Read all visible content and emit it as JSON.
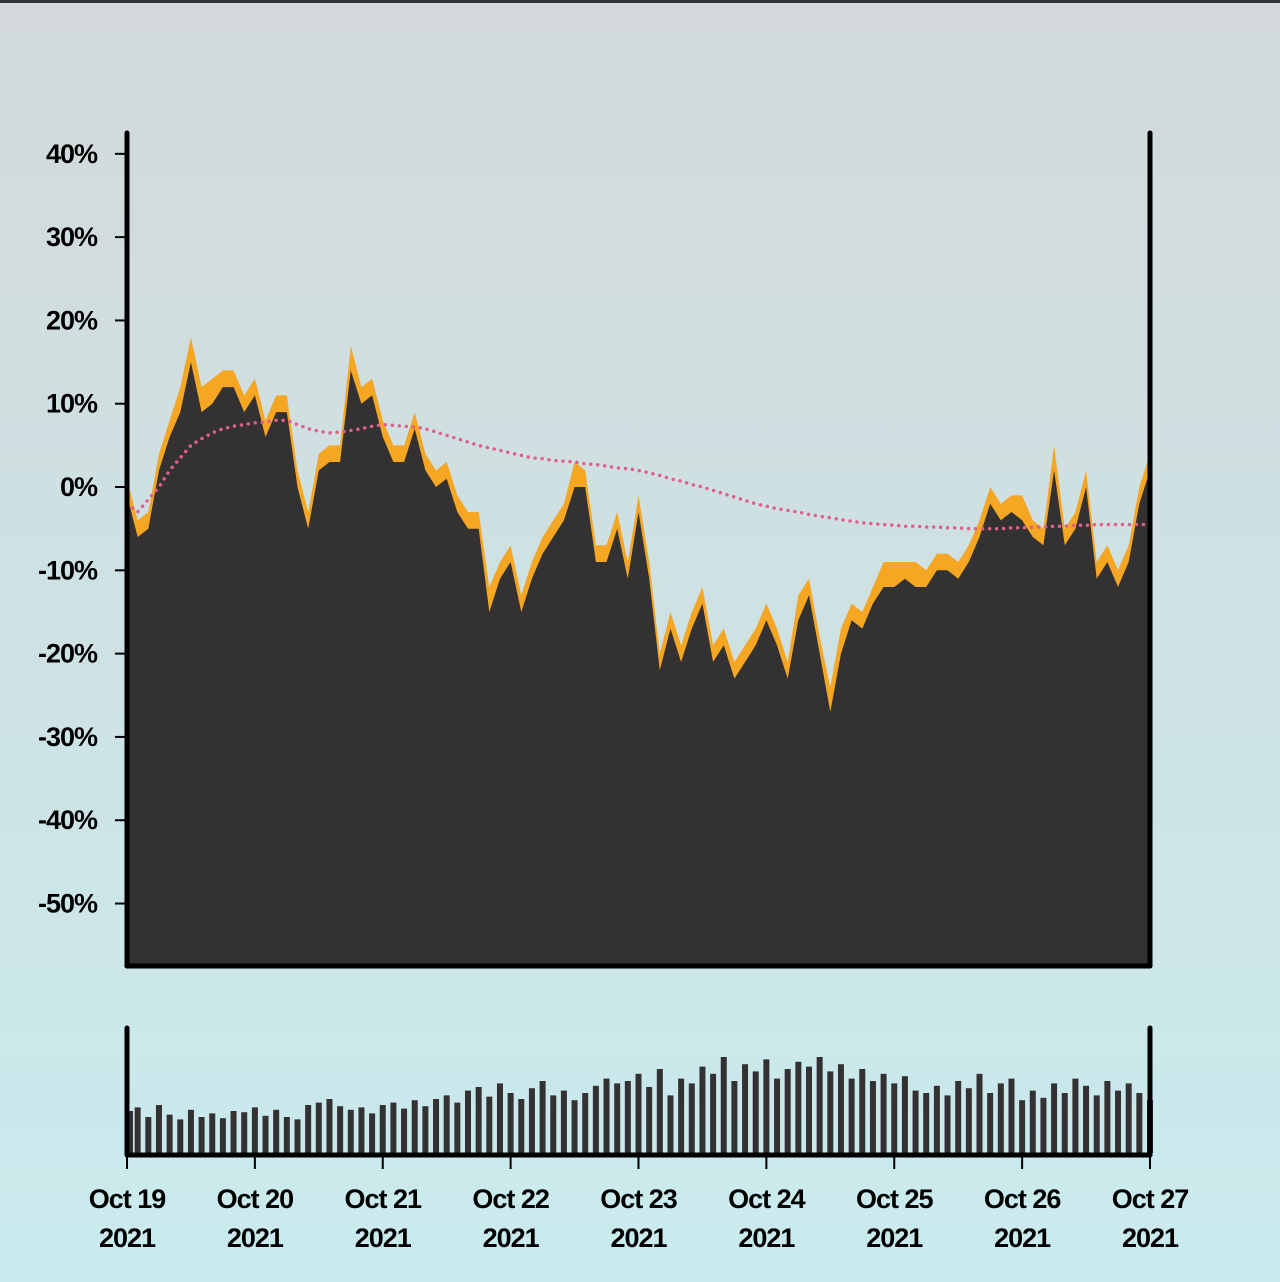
{
  "chart_data": [
    {
      "type": "area",
      "x": [
        "2021-10-19T00:00",
        "2021-10-19T02:00",
        "2021-10-19T04:00",
        "2021-10-19T06:00",
        "2021-10-19T08:00",
        "2021-10-19T10:00",
        "2021-10-19T12:00",
        "2021-10-19T14:00",
        "2021-10-19T16:00",
        "2021-10-19T18:00",
        "2021-10-19T20:00",
        "2021-10-19T22:00",
        "2021-10-20T00:00",
        "2021-10-20T02:00",
        "2021-10-20T04:00",
        "2021-10-20T06:00",
        "2021-10-20T08:00",
        "2021-10-20T10:00",
        "2021-10-20T12:00",
        "2021-10-20T14:00",
        "2021-10-20T16:00",
        "2021-10-20T18:00",
        "2021-10-20T20:00",
        "2021-10-20T22:00",
        "2021-10-21T00:00",
        "2021-10-21T02:00",
        "2021-10-21T04:00",
        "2021-10-21T06:00",
        "2021-10-21T08:00",
        "2021-10-21T10:00",
        "2021-10-21T12:00",
        "2021-10-21T14:00",
        "2021-10-21T16:00",
        "2021-10-21T18:00",
        "2021-10-21T20:00",
        "2021-10-21T22:00",
        "2021-10-22T00:00",
        "2021-10-22T02:00",
        "2021-10-22T04:00",
        "2021-10-22T06:00",
        "2021-10-22T08:00",
        "2021-10-22T10:00",
        "2021-10-22T12:00",
        "2021-10-22T14:00",
        "2021-10-22T16:00",
        "2021-10-22T18:00",
        "2021-10-22T20:00",
        "2021-10-22T22:00",
        "2021-10-23T00:00",
        "2021-10-23T02:00",
        "2021-10-23T04:00",
        "2021-10-23T06:00",
        "2021-10-23T08:00",
        "2021-10-23T10:00",
        "2021-10-23T12:00",
        "2021-10-23T14:00",
        "2021-10-23T16:00",
        "2021-10-23T18:00",
        "2021-10-23T20:00",
        "2021-10-23T22:00",
        "2021-10-24T00:00",
        "2021-10-24T02:00",
        "2021-10-24T04:00",
        "2021-10-24T06:00",
        "2021-10-24T08:00",
        "2021-10-24T10:00",
        "2021-10-24T12:00",
        "2021-10-24T14:00",
        "2021-10-24T16:00",
        "2021-10-24T18:00",
        "2021-10-24T20:00",
        "2021-10-24T22:00",
        "2021-10-25T00:00",
        "2021-10-25T02:00",
        "2021-10-25T04:00",
        "2021-10-25T06:00",
        "2021-10-25T08:00",
        "2021-10-25T10:00",
        "2021-10-25T12:00",
        "2021-10-25T14:00",
        "2021-10-25T16:00",
        "2021-10-25T18:00",
        "2021-10-25T20:00",
        "2021-10-25T22:00",
        "2021-10-26T00:00",
        "2021-10-26T02:00",
        "2021-10-26T04:00",
        "2021-10-26T06:00",
        "2021-10-26T08:00",
        "2021-10-26T10:00",
        "2021-10-26T12:00",
        "2021-10-26T14:00",
        "2021-10-26T16:00",
        "2021-10-26T18:00",
        "2021-10-26T20:00",
        "2021-10-26T22:00",
        "2021-10-27T00:00"
      ],
      "series": [
        {
          "color": "#f5a623",
          "values": [
            1,
            -4,
            -3,
            4,
            8,
            12,
            18,
            12,
            13,
            14,
            14,
            11,
            13,
            8,
            11,
            11,
            2,
            -3,
            4,
            5,
            5,
            17,
            12,
            13,
            8,
            5,
            5,
            9,
            4,
            2,
            3,
            -1,
            -3,
            -3,
            -12,
            -9,
            -7,
            -13,
            -9,
            -6,
            -4,
            -2,
            3,
            2,
            -7,
            -7,
            -3,
            -9,
            -1,
            -9,
            -20,
            -15,
            -19,
            -15,
            -12,
            -19,
            -17,
            -21,
            -19,
            -17,
            -14,
            -17,
            -21,
            -13,
            -11,
            -18,
            -24,
            -17,
            -14,
            -15,
            -12,
            -9,
            -9,
            -9,
            -9,
            -10,
            -8,
            -8,
            -9,
            -7,
            -4,
            0,
            -2,
            -1,
            -1,
            -4,
            -5,
            5,
            -5,
            -3,
            2,
            -9,
            -7,
            -10,
            -7,
            0,
            4
          ]
        },
        {
          "color": "#343132",
          "values": [
            -1,
            -6,
            -5,
            2,
            6,
            9,
            15,
            9,
            10,
            12,
            12,
            9,
            11,
            6,
            9,
            9,
            0,
            -5,
            2,
            3,
            3,
            14,
            10,
            11,
            6,
            3,
            3,
            7,
            2,
            0,
            1,
            -3,
            -5,
            -5,
            -15,
            -11,
            -9,
            -15,
            -11,
            -8,
            -6,
            -4,
            0,
            0,
            -9,
            -9,
            -5,
            -11,
            -3,
            -11,
            -22,
            -17,
            -21,
            -17,
            -14,
            -21,
            -19,
            -23,
            -21,
            -19,
            -16,
            -19,
            -23,
            -16,
            -13,
            -20,
            -27,
            -20,
            -16,
            -17,
            -14,
            -12,
            -12,
            -11,
            -12,
            -12,
            -10,
            -10,
            -11,
            -9,
            -6,
            -2,
            -4,
            -3,
            -4,
            -6,
            -7,
            2,
            -7,
            -5,
            0,
            -11,
            -9,
            -12,
            -9,
            -2,
            2
          ]
        },
        {
          "color": "#e0608a",
          "style": "dotted",
          "values": [
            -2,
            -3,
            -1.5,
            0,
            2,
            3.5,
            5,
            5.8,
            6.5,
            7,
            7.3,
            7.5,
            7.7,
            7.8,
            8,
            8,
            7.5,
            7,
            6.7,
            6.5,
            6.6,
            6.8,
            7,
            7.3,
            7.5,
            7.4,
            7.3,
            7.2,
            7,
            6.6,
            6.2,
            5.8,
            5.4,
            5,
            4.7,
            4.4,
            4.1,
            3.8,
            3.5,
            3.4,
            3.2,
            3.1,
            3,
            2.8,
            2.7,
            2.5,
            2.3,
            2.2,
            2,
            1.7,
            1.4,
            1,
            0.7,
            0.3,
            0,
            -0.4,
            -0.8,
            -1.2,
            -1.6,
            -2,
            -2.3,
            -2.6,
            -2.8,
            -3,
            -3.3,
            -3.5,
            -3.7,
            -3.9,
            -4.1,
            -4.3,
            -4.4,
            -4.5,
            -4.6,
            -4.7,
            -4.7,
            -4.8,
            -4.8,
            -4.9,
            -4.9,
            -5,
            -5,
            -5,
            -5,
            -4.9,
            -4.9,
            -4.8,
            -4.8,
            -4.7,
            -4.7,
            -4.6,
            -4.6,
            -4.5,
            -4.5,
            -4.5,
            -4.5,
            -4.5,
            -4.5
          ]
        }
      ],
      "xlim": [
        "2021-10-19T00:00",
        "2021-10-27T00:00"
      ],
      "ylim": [
        -57.5,
        42.5
      ],
      "yticks": [
        {
          "value": -50,
          "label": "-50%"
        },
        {
          "value": -40,
          "label": "-40%"
        },
        {
          "value": -30,
          "label": "-30%"
        },
        {
          "value": -20,
          "label": "-20%"
        },
        {
          "value": -10,
          "label": "-10%"
        },
        {
          "value": 0,
          "label": "0%"
        },
        {
          "value": 10,
          "label": "10%"
        },
        {
          "value": 20,
          "label": "20%"
        },
        {
          "value": 30,
          "label": "30%"
        },
        {
          "value": 40,
          "label": "40%"
        }
      ]
    },
    {
      "type": "bar",
      "x": [
        "2021-10-19T00:00",
        "2021-10-19T02:00",
        "2021-10-19T04:00",
        "2021-10-19T06:00",
        "2021-10-19T08:00",
        "2021-10-19T10:00",
        "2021-10-19T12:00",
        "2021-10-19T14:00",
        "2021-10-19T16:00",
        "2021-10-19T18:00",
        "2021-10-19T20:00",
        "2021-10-19T22:00",
        "2021-10-20T00:00",
        "2021-10-20T02:00",
        "2021-10-20T04:00",
        "2021-10-20T06:00",
        "2021-10-20T08:00",
        "2021-10-20T10:00",
        "2021-10-20T12:00",
        "2021-10-20T14:00",
        "2021-10-20T16:00",
        "2021-10-20T18:00",
        "2021-10-20T20:00",
        "2021-10-20T22:00",
        "2021-10-21T00:00",
        "2021-10-21T02:00",
        "2021-10-21T04:00",
        "2021-10-21T06:00",
        "2021-10-21T08:00",
        "2021-10-21T10:00",
        "2021-10-21T12:00",
        "2021-10-21T14:00",
        "2021-10-21T16:00",
        "2021-10-21T18:00",
        "2021-10-21T20:00",
        "2021-10-21T22:00",
        "2021-10-22T00:00",
        "2021-10-22T02:00",
        "2021-10-22T04:00",
        "2021-10-22T06:00",
        "2021-10-22T08:00",
        "2021-10-22T10:00",
        "2021-10-22T12:00",
        "2021-10-22T14:00",
        "2021-10-22T16:00",
        "2021-10-22T18:00",
        "2021-10-22T20:00",
        "2021-10-22T22:00",
        "2021-10-23T00:00",
        "2021-10-23T02:00",
        "2021-10-23T04:00",
        "2021-10-23T06:00",
        "2021-10-23T08:00",
        "2021-10-23T10:00",
        "2021-10-23T12:00",
        "2021-10-23T14:00",
        "2021-10-23T16:00",
        "2021-10-23T18:00",
        "2021-10-23T20:00",
        "2021-10-23T22:00",
        "2021-10-24T00:00",
        "2021-10-24T02:00",
        "2021-10-24T04:00",
        "2021-10-24T06:00",
        "2021-10-24T08:00",
        "2021-10-24T10:00",
        "2021-10-24T12:00",
        "2021-10-24T14:00",
        "2021-10-24T16:00",
        "2021-10-24T18:00",
        "2021-10-24T20:00",
        "2021-10-24T22:00",
        "2021-10-25T00:00",
        "2021-10-25T02:00",
        "2021-10-25T04:00",
        "2021-10-25T06:00",
        "2021-10-25T08:00",
        "2021-10-25T10:00",
        "2021-10-25T12:00",
        "2021-10-25T14:00",
        "2021-10-25T16:00",
        "2021-10-25T18:00",
        "2021-10-25T20:00",
        "2021-10-25T22:00",
        "2021-10-26T00:00",
        "2021-10-26T02:00",
        "2021-10-26T04:00",
        "2021-10-26T06:00",
        "2021-10-26T08:00",
        "2021-10-26T10:00",
        "2021-10-26T12:00",
        "2021-10-26T14:00",
        "2021-10-26T16:00",
        "2021-10-26T18:00",
        "2021-10-26T20:00",
        "2021-10-26T22:00",
        "2021-10-27T00:00"
      ],
      "values": [
        35,
        38,
        30,
        40,
        32,
        28,
        36,
        30,
        33,
        29,
        35,
        34,
        38,
        31,
        36,
        30,
        28,
        40,
        42,
        45,
        39,
        36,
        38,
        33,
        40,
        42,
        37,
        44,
        39,
        45,
        48,
        42,
        52,
        55,
        47,
        58,
        50,
        45,
        54,
        60,
        48,
        52,
        44,
        50,
        56,
        62,
        58,
        60,
        66,
        55,
        70,
        48,
        62,
        58,
        72,
        66,
        80,
        60,
        74,
        68,
        78,
        62,
        70,
        76,
        72,
        80,
        68,
        74,
        62,
        70,
        60,
        66,
        58,
        64,
        52,
        50,
        56,
        48,
        60,
        54,
        66,
        50,
        58,
        62,
        44,
        52,
        46,
        58,
        50,
        62,
        56,
        48,
        60,
        52,
        58,
        50,
        44
      ],
      "color": "#343132",
      "xlim": [
        "2021-10-19T00:00",
        "2021-10-27T00:00"
      ],
      "ylim": [
        0,
        100
      ],
      "xticks": [
        {
          "value": "2021-10-19",
          "label": "Oct 19 2021"
        },
        {
          "value": "2021-10-20",
          "label": "Oct 20 2021"
        },
        {
          "value": "2021-10-21",
          "label": "Oct 21 2021"
        },
        {
          "value": "2021-10-22",
          "label": "Oct 22 2021"
        },
        {
          "value": "2021-10-23",
          "label": "Oct 23 2021"
        },
        {
          "value": "2021-10-24",
          "label": "Oct 24 2021"
        },
        {
          "value": "2021-10-25",
          "label": "Oct 25 2021"
        },
        {
          "value": "2021-10-26",
          "label": "Oct 26 2021"
        },
        {
          "value": "2021-10-27",
          "label": "Oct 27 2021"
        }
      ]
    }
  ]
}
